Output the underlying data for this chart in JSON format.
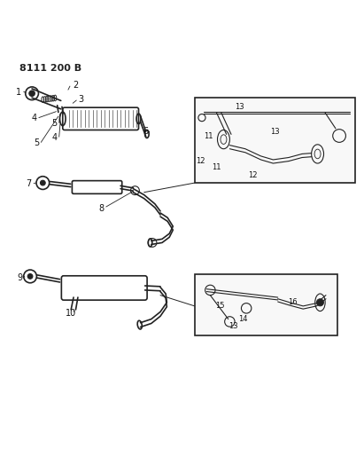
{
  "title": "8111 200 B",
  "bg_color": "#ffffff",
  "line_color": "#222222",
  "label_color": "#111111",
  "figsize": [
    4.11,
    5.33
  ],
  "dpi": 100
}
